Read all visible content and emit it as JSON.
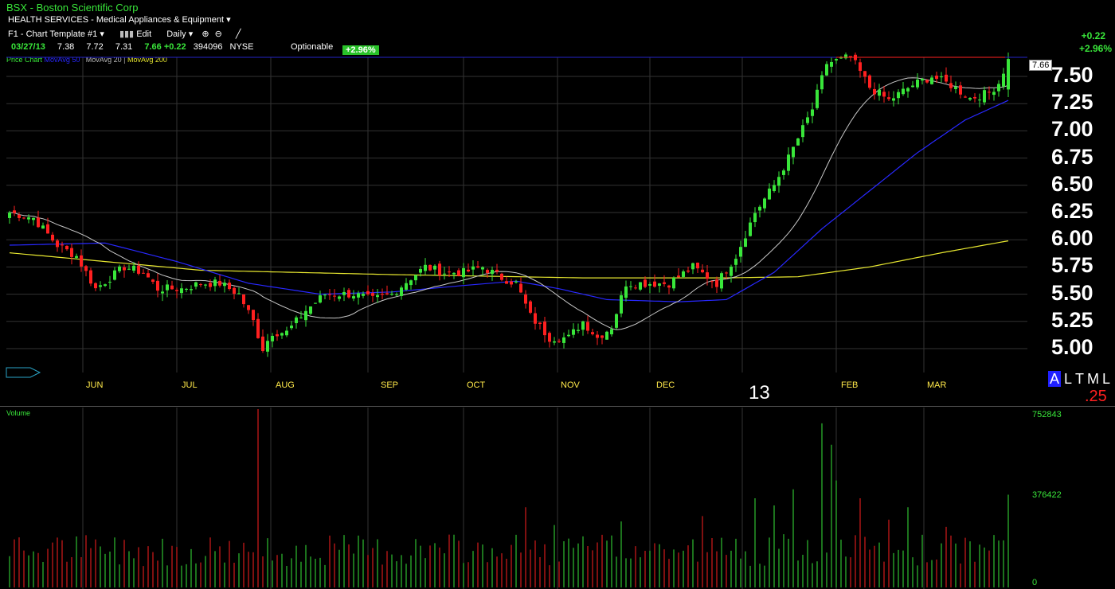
{
  "header": {
    "ticker_title": "BSX - Boston Scientific Corp",
    "sector": "HEALTH SERVICES - Medical Appliances & Equipment",
    "dropdown_arrow": "▾"
  },
  "toolbar": {
    "template": "F1 - Chart Template #1",
    "edit": "Edit",
    "period": "Daily"
  },
  "quote": {
    "date": "03/27/13",
    "open": "7.38",
    "high": "7.72",
    "low": "7.31",
    "last": "7.66",
    "change": "+0.22",
    "volume": "394096",
    "exchange": "NYSE",
    "optionable": "Optionable",
    "pct_pill": "+2.96%",
    "right_change": "+0.22",
    "right_pct": "+2.96%"
  },
  "legend": {
    "price_chart": "Price Chart",
    "ma50": "MovAvg 50",
    "ma20": "MovAvg 20",
    "ma200": "MovAvg 200"
  },
  "last_price_box": "7.66",
  "year_label": "13",
  "atl": {
    "a": "A",
    "l": "L",
    "t": "T",
    "m": "M",
    "l2": "L"
  },
  "ticksize": ".25",
  "volume_label": "Volume",
  "volume_ticks": [
    "752843",
    "376422",
    "0"
  ],
  "colors": {
    "up": "#39e63a",
    "down": "#ff2020",
    "ma20": "#c8c8c8",
    "ma50": "#2828ff",
    "ma200": "#e8e830",
    "grid": "#333333"
  },
  "chart_data": {
    "type": "candlestick",
    "ylim": [
      4.82,
      7.83
    ],
    "yticks": [
      "5.00",
      "5.25",
      "5.50",
      "5.75",
      "6.00",
      "6.25",
      "6.50",
      "6.75",
      "7.00",
      "7.25",
      "7.50"
    ],
    "months": [
      "JUN",
      "JUL",
      "AUG",
      "SEP",
      "OCT",
      "NOV",
      "DEC",
      "FEB",
      "MAR"
    ],
    "bars": 210,
    "close_anchors": [
      [
        0,
        6.25
      ],
      [
        5,
        6.2
      ],
      [
        10,
        5.95
      ],
      [
        14,
        5.85
      ],
      [
        18,
        5.55
      ],
      [
        24,
        5.75
      ],
      [
        28,
        5.7
      ],
      [
        31,
        5.55
      ],
      [
        36,
        5.55
      ],
      [
        40,
        5.6
      ],
      [
        44,
        5.6
      ],
      [
        48,
        5.5
      ],
      [
        51,
        5.25
      ],
      [
        53,
        5.0
      ],
      [
        55,
        5.15
      ],
      [
        58,
        5.15
      ],
      [
        62,
        5.35
      ],
      [
        66,
        5.5
      ],
      [
        72,
        5.5
      ],
      [
        76,
        5.45
      ],
      [
        80,
        5.5
      ],
      [
        84,
        5.65
      ],
      [
        87,
        5.75
      ],
      [
        91,
        5.7
      ],
      [
        95,
        5.7
      ],
      [
        99,
        5.75
      ],
      [
        103,
        5.65
      ],
      [
        106,
        5.6
      ],
      [
        109,
        5.3
      ],
      [
        113,
        5.1
      ],
      [
        117,
        5.1
      ],
      [
        120,
        5.25
      ],
      [
        123,
        5.1
      ],
      [
        126,
        5.2
      ],
      [
        129,
        5.6
      ],
      [
        134,
        5.6
      ],
      [
        138,
        5.6
      ],
      [
        143,
        5.75
      ],
      [
        148,
        5.6
      ],
      [
        152,
        5.85
      ],
      [
        156,
        6.25
      ],
      [
        160,
        6.5
      ],
      [
        163,
        6.75
      ],
      [
        168,
        7.2
      ],
      [
        171,
        7.62
      ],
      [
        176,
        7.68
      ],
      [
        180,
        7.4
      ],
      [
        184,
        7.28
      ],
      [
        189,
        7.42
      ],
      [
        193,
        7.5
      ],
      [
        197,
        7.42
      ],
      [
        201,
        7.3
      ],
      [
        205,
        7.35
      ],
      [
        207,
        7.44
      ],
      [
        209,
        7.66
      ]
    ],
    "ma200_anchors": [
      [
        0,
        5.88
      ],
      [
        40,
        5.72
      ],
      [
        80,
        5.68
      ],
      [
        120,
        5.65
      ],
      [
        150,
        5.65
      ],
      [
        165,
        5.66
      ],
      [
        180,
        5.75
      ],
      [
        195,
        5.88
      ],
      [
        209,
        5.99
      ]
    ],
    "ma50_anchors": [
      [
        0,
        5.95
      ],
      [
        20,
        5.97
      ],
      [
        35,
        5.8
      ],
      [
        50,
        5.6
      ],
      [
        65,
        5.5
      ],
      [
        80,
        5.52
      ],
      [
        95,
        5.58
      ],
      [
        106,
        5.62
      ],
      [
        115,
        5.55
      ],
      [
        125,
        5.45
      ],
      [
        140,
        5.43
      ],
      [
        150,
        5.45
      ],
      [
        160,
        5.7
      ],
      [
        170,
        6.1
      ],
      [
        180,
        6.45
      ],
      [
        190,
        6.8
      ],
      [
        200,
        7.1
      ],
      [
        209,
        7.28
      ]
    ],
    "volume_peak": 752843
  }
}
